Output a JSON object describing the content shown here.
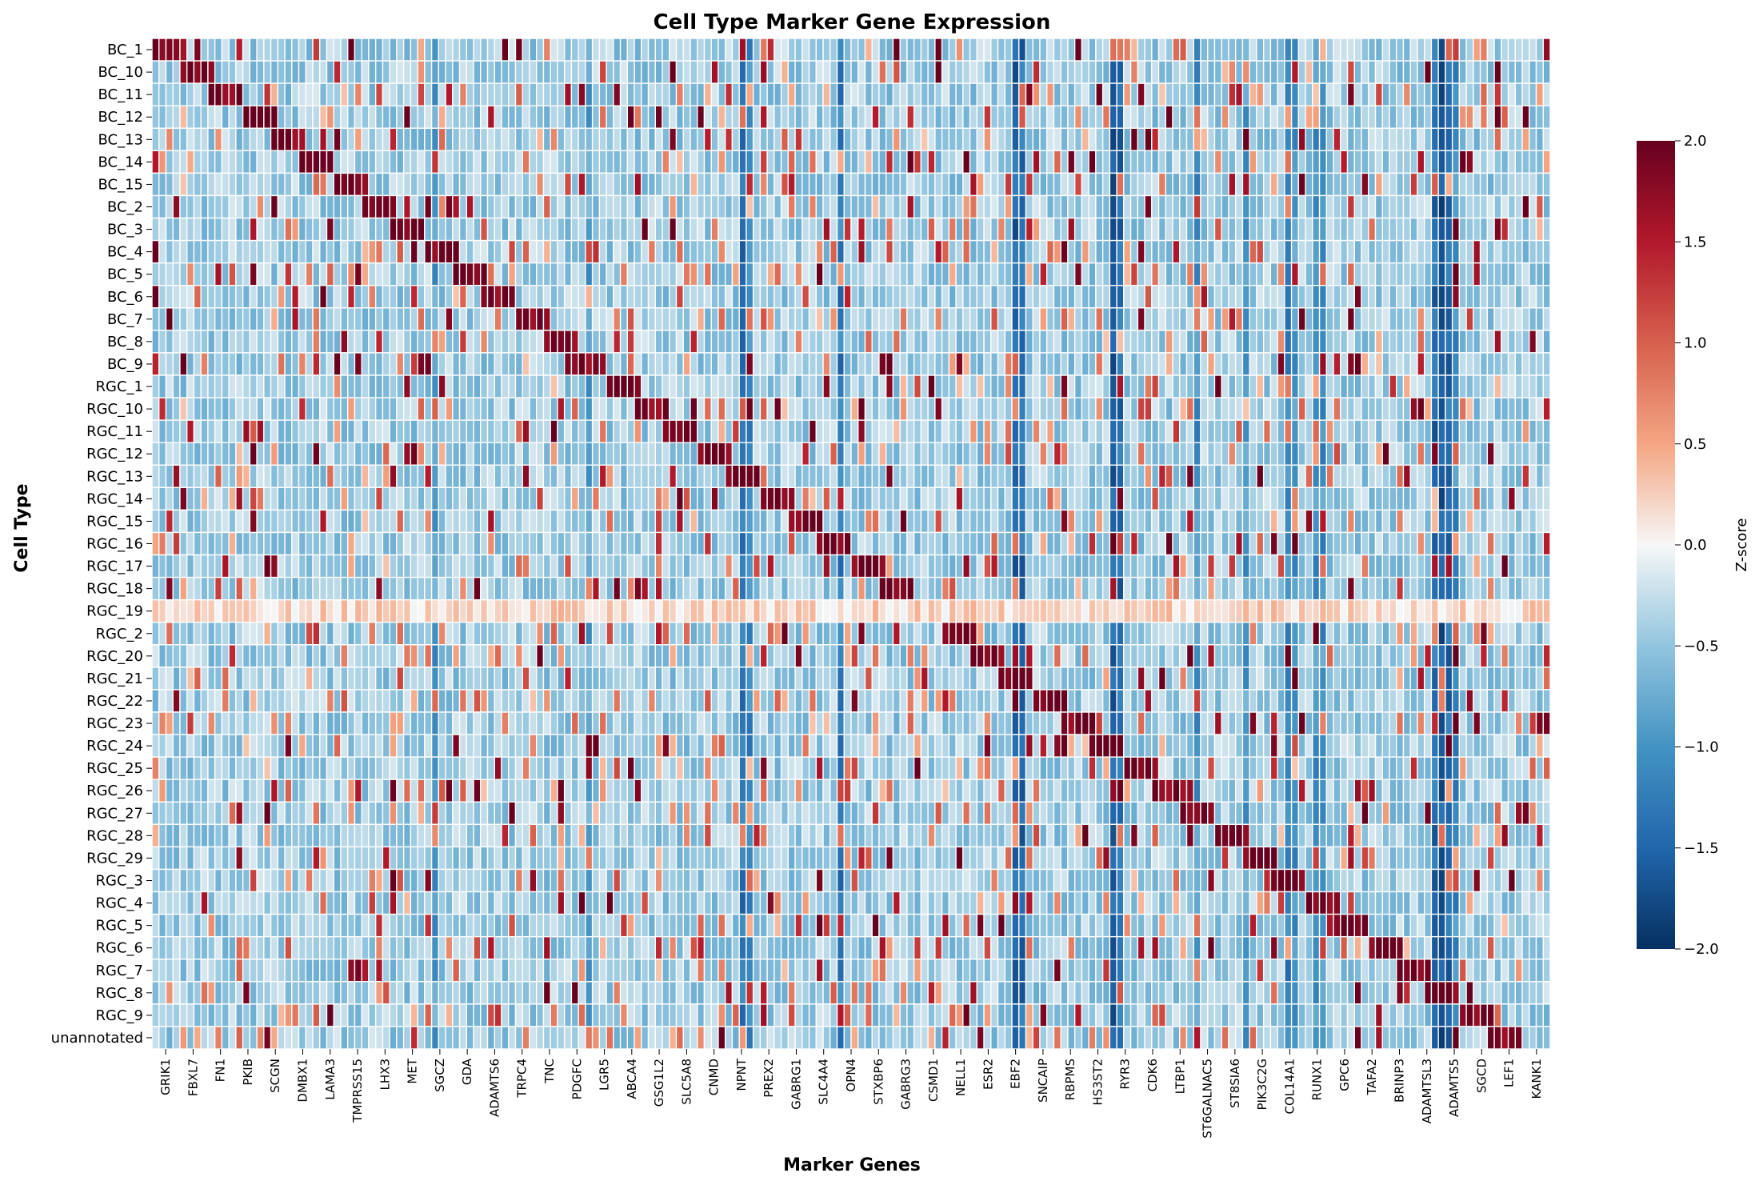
{
  "chart_data": {
    "type": "heatmap",
    "title": "Cell Type Marker Gene Expression",
    "xlabel": "Marker Genes",
    "ylabel": "Cell Type",
    "colorbar_label": "Z-score",
    "colorbar_ticks": [
      "2.0",
      "1.5",
      "1.0",
      "0.5",
      "0.0",
      "−0.5",
      "−1.0",
      "−1.5",
      "−2.0"
    ],
    "vmin": -2.0,
    "vmax": 2.0,
    "colormap": "RdBu_r",
    "rows": [
      "BC_1",
      "BC_10",
      "BC_11",
      "BC_12",
      "BC_13",
      "BC_14",
      "BC_15",
      "BC_2",
      "BC_3",
      "BC_4",
      "BC_5",
      "BC_6",
      "BC_7",
      "BC_8",
      "BC_9",
      "RGC_1",
      "RGC_10",
      "RGC_11",
      "RGC_12",
      "RGC_13",
      "RGC_14",
      "RGC_15",
      "RGC_16",
      "RGC_17",
      "RGC_18",
      "RGC_19",
      "RGC_2",
      "RGC_20",
      "RGC_21",
      "RGC_22",
      "RGC_23",
      "RGC_24",
      "RGC_25",
      "RGC_26",
      "RGC_27",
      "RGC_28",
      "RGC_29",
      "RGC_3",
      "RGC_4",
      "RGC_5",
      "RGC_6",
      "RGC_7",
      "RGC_8",
      "RGC_9",
      "unannotated"
    ],
    "x_tick_labels": [
      "GRIK1",
      "FBXL7",
      "FN1",
      "PKIB",
      "SCGN",
      "DMBX1",
      "LAMA3",
      "TMPRSS15",
      "LHX3",
      "MET",
      "SGCZ",
      "GDA",
      "ADAMTS6",
      "TRPC4",
      "TNC",
      "PDGFC",
      "LGR5",
      "ABCA4",
      "GSG1L2",
      "SLC5A8",
      "CNMD",
      "NPNT",
      "PREX2",
      "GABRG1",
      "SLC4A4",
      "OPN4",
      "STXBP6",
      "GABRG3",
      "CSMD1",
      "NELL1",
      "ESR2",
      "EBF2",
      "SNCAIP",
      "RBPMS",
      "HS3ST2",
      "RYR3",
      "CDK6",
      "LTBP1",
      "ST6GALNAC5",
      "ST8SIA6",
      "PIK3C2G",
      "COL14A1",
      "RUNX1",
      "GPC6",
      "TAFA2",
      "BRINP3",
      "ADAMTSL3",
      "ADAMTS5",
      "SGCD",
      "LEF1",
      "KANK1"
    ],
    "n_columns": 200,
    "note_values_approximate": true
  }
}
